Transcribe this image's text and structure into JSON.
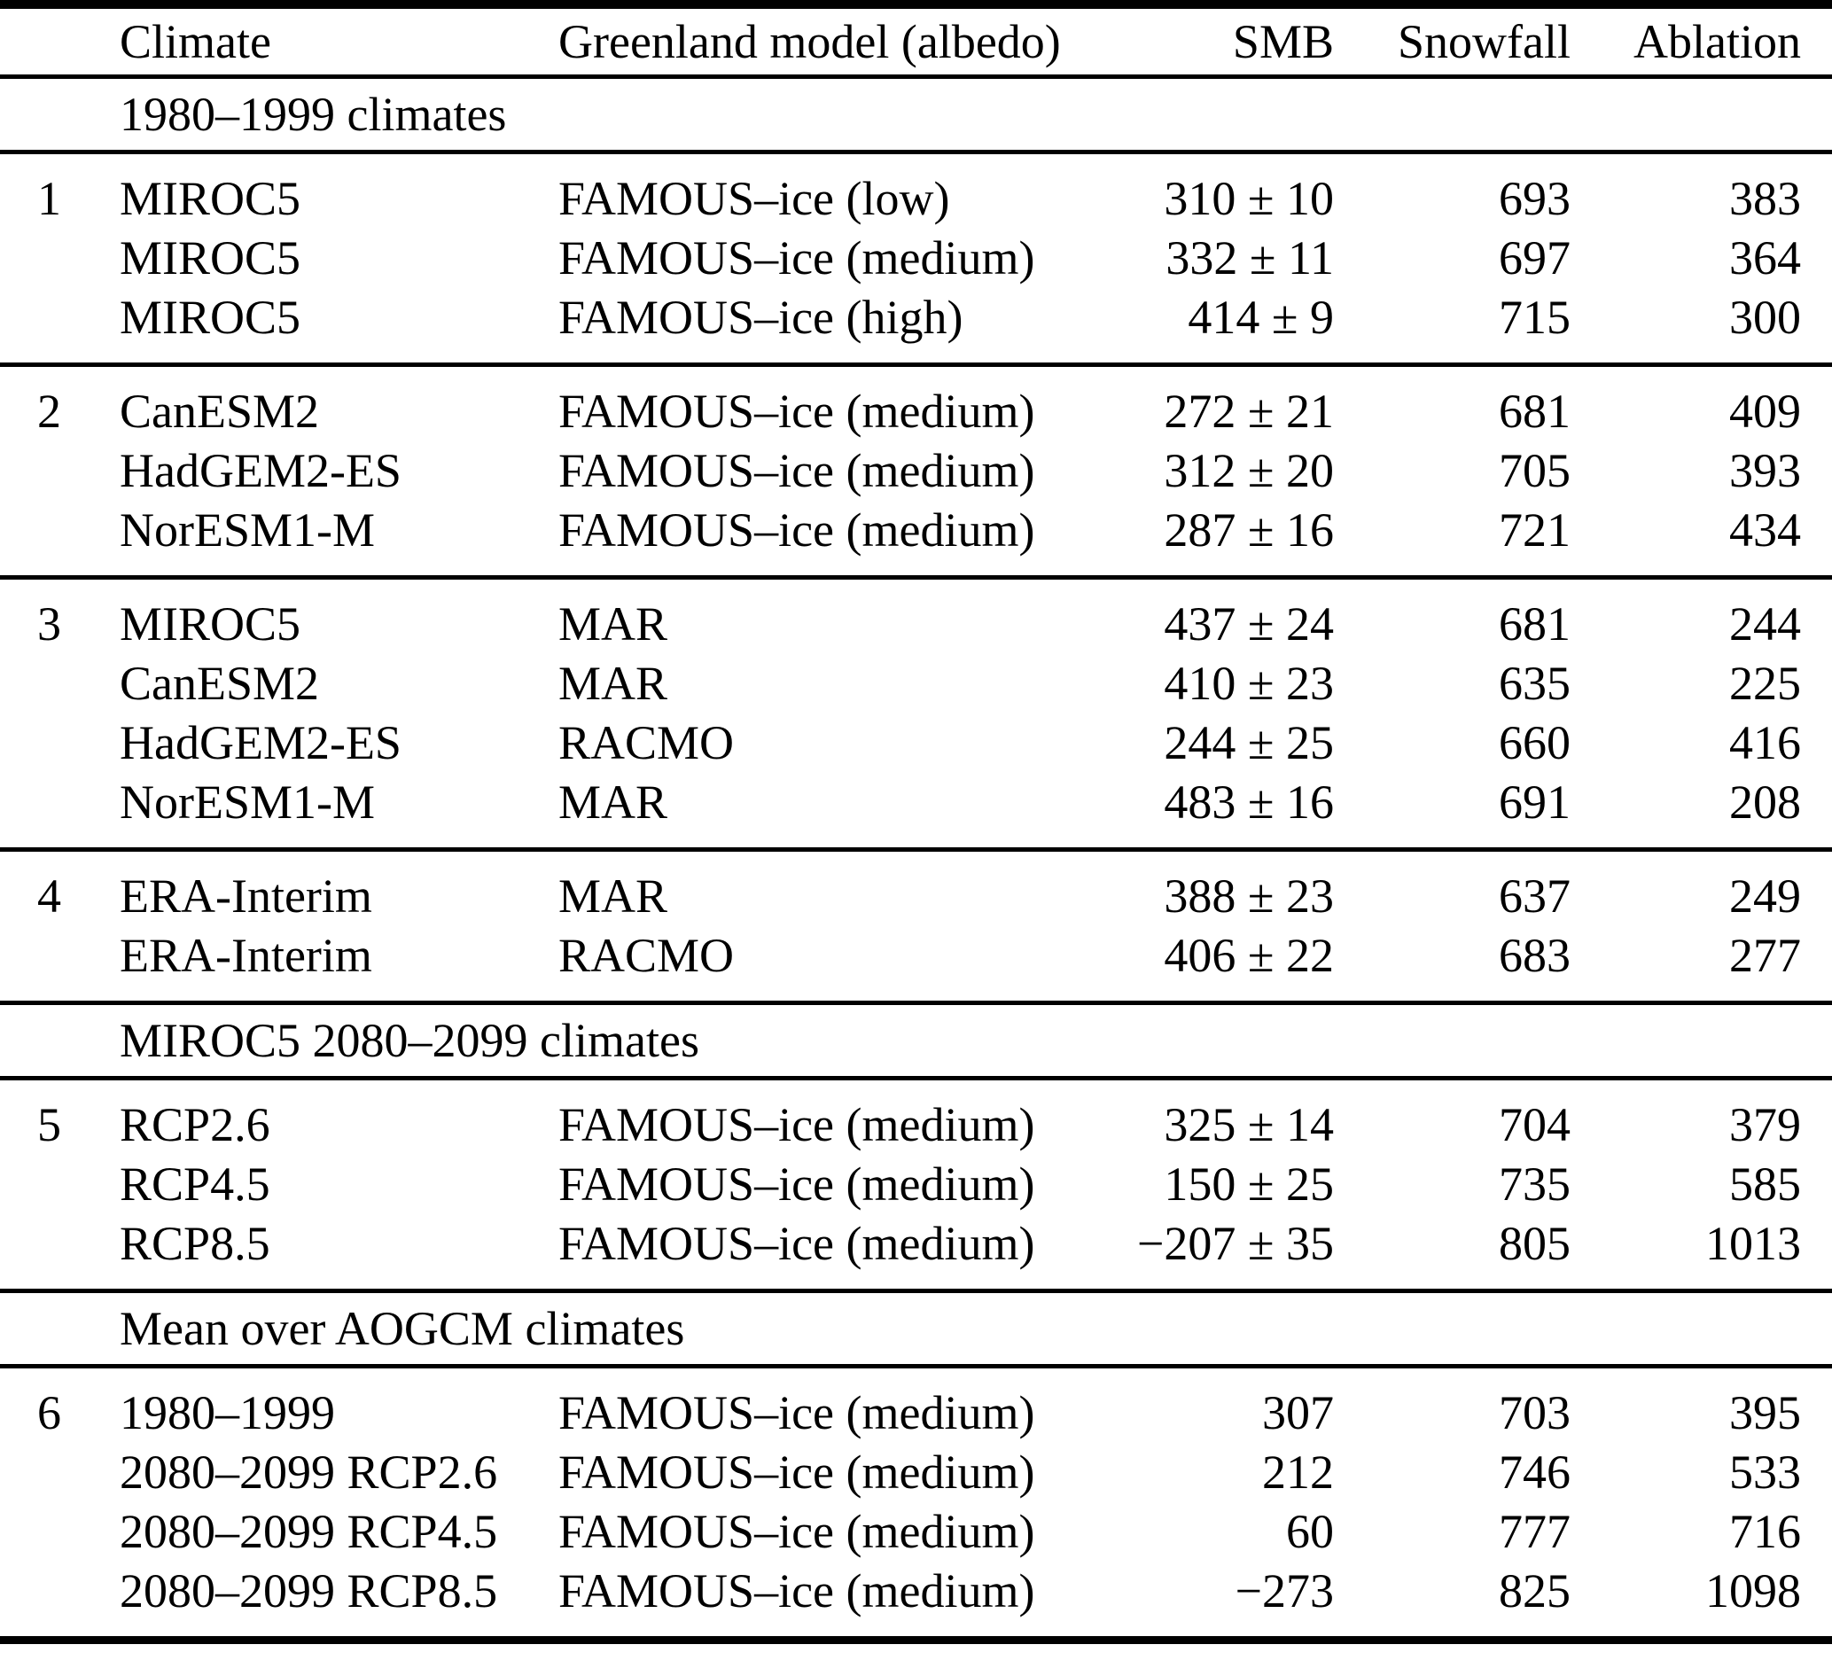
{
  "table": {
    "columns": [
      {
        "label": "Climate"
      },
      {
        "label": "Greenland model (albedo)"
      },
      {
        "label": "SMB"
      },
      {
        "label": "Snowfall"
      },
      {
        "label": "Ablation"
      }
    ],
    "blocks": [
      {
        "type": "section",
        "label": "1980–1999 climates"
      },
      {
        "type": "group",
        "number": "1",
        "rows": [
          {
            "climate": "MIROC5",
            "model": "FAMOUS–ice (low)",
            "smb": "310 ± 10",
            "snowfall": "693",
            "ablation": "383"
          },
          {
            "climate": "MIROC5",
            "model": "FAMOUS–ice (medium)",
            "smb": "332 ± 11",
            "snowfall": "697",
            "ablation": "364"
          },
          {
            "climate": "MIROC5",
            "model": "FAMOUS–ice (high)",
            "smb": "414 ± 9",
            "snowfall": "715",
            "ablation": "300"
          }
        ]
      },
      {
        "type": "group",
        "number": "2",
        "rows": [
          {
            "climate": "CanESM2",
            "model": "FAMOUS–ice (medium)",
            "smb": "272 ± 21",
            "snowfall": "681",
            "ablation": "409"
          },
          {
            "climate": "HadGEM2-ES",
            "model": "FAMOUS–ice (medium)",
            "smb": "312 ± 20",
            "snowfall": "705",
            "ablation": "393"
          },
          {
            "climate": "NorESM1-M",
            "model": "FAMOUS–ice (medium)",
            "smb": "287 ± 16",
            "snowfall": "721",
            "ablation": "434"
          }
        ]
      },
      {
        "type": "group",
        "number": "3",
        "rows": [
          {
            "climate": "MIROC5",
            "model": "MAR",
            "smb": "437 ± 24",
            "snowfall": "681",
            "ablation": "244"
          },
          {
            "climate": "CanESM2",
            "model": "MAR",
            "smb": "410 ± 23",
            "snowfall": "635",
            "ablation": "225"
          },
          {
            "climate": "HadGEM2-ES",
            "model": "RACMO",
            "smb": "244 ± 25",
            "snowfall": "660",
            "ablation": "416"
          },
          {
            "climate": "NorESM1-M",
            "model": "MAR",
            "smb": "483 ± 16",
            "snowfall": "691",
            "ablation": "208"
          }
        ]
      },
      {
        "type": "group",
        "number": "4",
        "rows": [
          {
            "climate": "ERA-Interim",
            "model": "MAR",
            "smb": "388 ± 23",
            "snowfall": "637",
            "ablation": "249"
          },
          {
            "climate": "ERA-Interim",
            "model": "RACMO",
            "smb": "406 ± 22",
            "snowfall": "683",
            "ablation": "277"
          }
        ]
      },
      {
        "type": "section",
        "label": "MIROC5 2080–2099 climates"
      },
      {
        "type": "group",
        "number": "5",
        "rows": [
          {
            "climate": "RCP2.6",
            "model": "FAMOUS–ice (medium)",
            "smb": "325 ± 14",
            "snowfall": "704",
            "ablation": "379"
          },
          {
            "climate": "RCP4.5",
            "model": "FAMOUS–ice (medium)",
            "smb": "150 ± 25",
            "snowfall": "735",
            "ablation": "585"
          },
          {
            "climate": "RCP8.5",
            "model": "FAMOUS–ice (medium)",
            "smb": "−207 ± 35",
            "snowfall": "805",
            "ablation": "1013"
          }
        ]
      },
      {
        "type": "section",
        "label": "Mean over AOGCM climates"
      },
      {
        "type": "group",
        "number": "6",
        "rows": [
          {
            "climate": "1980–1999",
            "model": "FAMOUS–ice (medium)",
            "smb": "307",
            "snowfall": "703",
            "ablation": "395"
          },
          {
            "climate": "2080–2099 RCP2.6",
            "model": "FAMOUS–ice (medium)",
            "smb": "212",
            "snowfall": "746",
            "ablation": "533"
          },
          {
            "climate": "2080–2099 RCP4.5",
            "model": "FAMOUS–ice (medium)",
            "smb": "60",
            "snowfall": "777",
            "ablation": "716"
          },
          {
            "climate": "2080–2099 RCP8.5",
            "model": "FAMOUS–ice (medium)",
            "smb": "−273",
            "snowfall": "825",
            "ablation": "1098"
          }
        ]
      }
    ]
  },
  "colors": {
    "text": "#000000",
    "background": "#ffffff",
    "rule": "#000000"
  }
}
